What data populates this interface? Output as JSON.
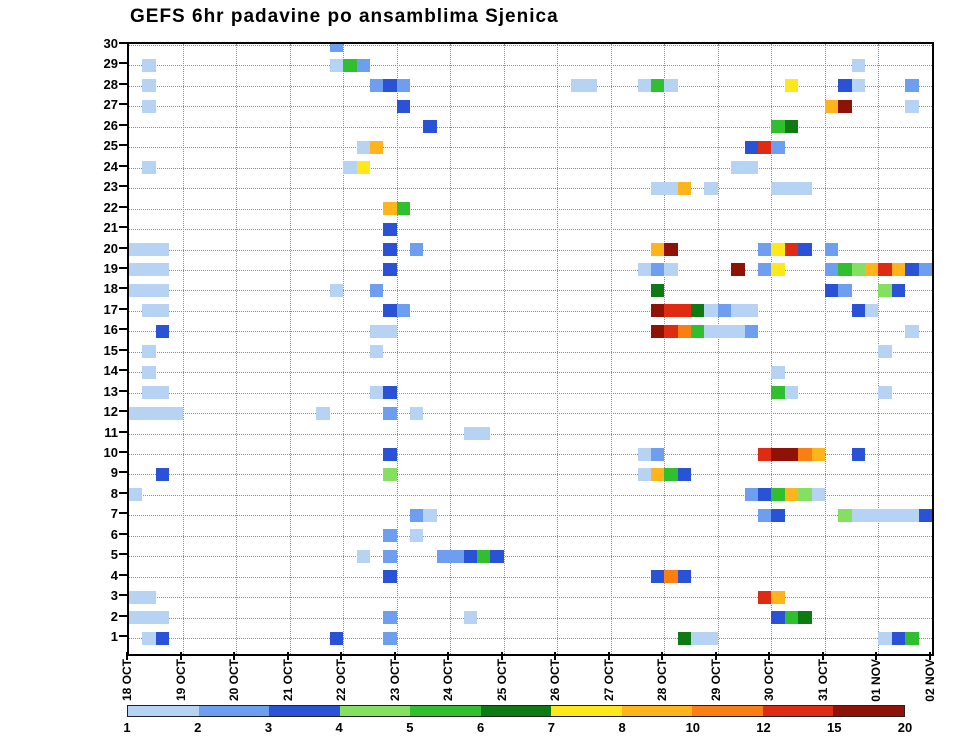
{
  "chart_data": {
    "type": "heatmap",
    "title": "GEFS 6hr padavine po ansamblima Sjenica",
    "xlabel": "",
    "ylabel": "",
    "grid": "dotted",
    "background": "#ffffff",
    "legend_position": "bottom",
    "x_tick_labels": [
      "18 OCT",
      "19 OCT",
      "20 OCT",
      "21 OCT",
      "22 OCT",
      "23 OCT",
      "24 OCT",
      "25 OCT",
      "26 OCT",
      "27 OCT",
      "28 OCT",
      "29 OCT",
      "30 OCT",
      "31 OCT",
      "01 NOV",
      "02 NOV"
    ],
    "steps_per_day": 4,
    "total_steps": 60,
    "y_tick_labels": [
      "30",
      "29",
      "28",
      "27",
      "26",
      "25",
      "24",
      "23",
      "22",
      "21",
      "20",
      "19",
      "18",
      "17",
      "16",
      "15",
      "14",
      "13",
      "12",
      "11",
      "10",
      "9",
      "8",
      "7",
      "6",
      "5",
      "4",
      "3",
      "2",
      "1"
    ],
    "colorbar": {
      "labels": [
        "1",
        "2",
        "3",
        "4",
        "5",
        "6",
        "7",
        "8",
        "10",
        "12",
        "15",
        "20"
      ],
      "thresholds": [
        1,
        2,
        3,
        4,
        5,
        6,
        7,
        8,
        10,
        12,
        15
      ],
      "colors": [
        "#b7d3f4",
        "#6e9ef0",
        "#2a52d6",
        "#85e061",
        "#2fbf2f",
        "#0d7a14",
        "#ffe81a",
        "#ffb41c",
        "#f97f12",
        "#de2b12",
        "#8e1306"
      ]
    },
    "cells": [
      [
        30,
        15,
        2
      ],
      [
        29,
        1,
        1
      ],
      [
        29,
        15,
        1
      ],
      [
        29,
        16,
        5
      ],
      [
        29,
        17,
        2
      ],
      [
        29,
        54,
        1
      ],
      [
        28,
        1,
        1
      ],
      [
        28,
        18,
        2
      ],
      [
        28,
        19,
        3
      ],
      [
        28,
        20,
        2
      ],
      [
        28,
        33,
        1
      ],
      [
        28,
        34,
        1
      ],
      [
        28,
        38,
        1
      ],
      [
        28,
        39,
        5
      ],
      [
        28,
        40,
        1
      ],
      [
        28,
        49,
        7
      ],
      [
        28,
        53,
        3
      ],
      [
        28,
        54,
        1
      ],
      [
        28,
        58,
        2
      ],
      [
        27,
        1,
        1
      ],
      [
        27,
        20,
        3
      ],
      [
        27,
        52,
        8
      ],
      [
        27,
        53,
        15
      ],
      [
        27,
        58,
        1
      ],
      [
        26,
        22,
        3
      ],
      [
        26,
        48,
        5
      ],
      [
        26,
        49,
        6
      ],
      [
        25,
        17,
        1
      ],
      [
        25,
        18,
        8
      ],
      [
        25,
        46,
        3
      ],
      [
        25,
        47,
        12
      ],
      [
        25,
        48,
        2
      ],
      [
        24,
        1,
        1
      ],
      [
        24,
        16,
        1
      ],
      [
        24,
        17,
        7
      ],
      [
        24,
        45,
        1
      ],
      [
        24,
        46,
        1
      ],
      [
        23,
        39,
        1
      ],
      [
        23,
        40,
        1
      ],
      [
        23,
        41,
        8
      ],
      [
        23,
        43,
        1
      ],
      [
        23,
        48,
        1
      ],
      [
        23,
        49,
        1
      ],
      [
        23,
        50,
        1
      ],
      [
        22,
        19,
        8
      ],
      [
        22,
        20,
        5
      ],
      [
        21,
        19,
        3
      ],
      [
        20,
        0,
        1
      ],
      [
        20,
        1,
        1
      ],
      [
        20,
        2,
        1
      ],
      [
        20,
        19,
        3
      ],
      [
        20,
        21,
        2
      ],
      [
        20,
        39,
        8
      ],
      [
        20,
        40,
        15
      ],
      [
        20,
        47,
        2
      ],
      [
        20,
        48,
        7
      ],
      [
        20,
        49,
        12
      ],
      [
        20,
        50,
        3
      ],
      [
        20,
        52,
        2
      ],
      [
        19,
        0,
        1
      ],
      [
        19,
        1,
        1
      ],
      [
        19,
        2,
        1
      ],
      [
        19,
        19,
        3
      ],
      [
        19,
        38,
        1
      ],
      [
        19,
        39,
        2
      ],
      [
        19,
        40,
        1
      ],
      [
        19,
        45,
        15
      ],
      [
        19,
        47,
        2
      ],
      [
        19,
        48,
        7
      ],
      [
        19,
        52,
        2
      ],
      [
        19,
        53,
        5
      ],
      [
        19,
        54,
        4
      ],
      [
        19,
        55,
        8
      ],
      [
        19,
        56,
        12
      ],
      [
        19,
        57,
        8
      ],
      [
        19,
        58,
        3
      ],
      [
        19,
        59,
        2
      ],
      [
        18,
        0,
        1
      ],
      [
        18,
        1,
        1
      ],
      [
        18,
        2,
        1
      ],
      [
        18,
        15,
        1
      ],
      [
        18,
        18,
        2
      ],
      [
        18,
        39,
        6
      ],
      [
        18,
        52,
        3
      ],
      [
        18,
        53,
        2
      ],
      [
        18,
        56,
        4
      ],
      [
        18,
        57,
        3
      ],
      [
        17,
        1,
        1
      ],
      [
        17,
        2,
        1
      ],
      [
        17,
        19,
        3
      ],
      [
        17,
        20,
        2
      ],
      [
        17,
        39,
        15
      ],
      [
        17,
        40,
        12
      ],
      [
        17,
        41,
        12
      ],
      [
        17,
        42,
        6
      ],
      [
        17,
        43,
        1
      ],
      [
        17,
        44,
        2
      ],
      [
        17,
        45,
        1
      ],
      [
        17,
        46,
        1
      ],
      [
        17,
        54,
        3
      ],
      [
        17,
        55,
        1
      ],
      [
        16,
        2,
        3
      ],
      [
        16,
        18,
        1
      ],
      [
        16,
        19,
        1
      ],
      [
        16,
        39,
        15
      ],
      [
        16,
        40,
        12
      ],
      [
        16,
        41,
        10
      ],
      [
        16,
        42,
        5
      ],
      [
        16,
        43,
        1
      ],
      [
        16,
        44,
        1
      ],
      [
        16,
        45,
        1
      ],
      [
        16,
        46,
        2
      ],
      [
        16,
        58,
        1
      ],
      [
        15,
        1,
        1
      ],
      [
        15,
        18,
        1
      ],
      [
        15,
        56,
        1
      ],
      [
        14,
        1,
        1
      ],
      [
        14,
        48,
        1
      ],
      [
        13,
        1,
        1
      ],
      [
        13,
        2,
        1
      ],
      [
        13,
        18,
        1
      ],
      [
        13,
        19,
        3
      ],
      [
        13,
        48,
        5
      ],
      [
        13,
        49,
        1
      ],
      [
        13,
        56,
        1
      ],
      [
        12,
        0,
        1
      ],
      [
        12,
        1,
        1
      ],
      [
        12,
        2,
        1
      ],
      [
        12,
        3,
        1
      ],
      [
        12,
        14,
        1
      ],
      [
        12,
        19,
        2
      ],
      [
        12,
        21,
        1
      ],
      [
        11,
        25,
        1
      ],
      [
        11,
        26,
        1
      ],
      [
        10,
        19,
        3
      ],
      [
        10,
        38,
        1
      ],
      [
        10,
        39,
        2
      ],
      [
        10,
        47,
        12
      ],
      [
        10,
        48,
        15
      ],
      [
        10,
        49,
        15
      ],
      [
        10,
        50,
        10
      ],
      [
        10,
        51,
        8
      ],
      [
        10,
        54,
        3
      ],
      [
        9,
        2,
        3
      ],
      [
        9,
        19,
        4
      ],
      [
        9,
        38,
        1
      ],
      [
        9,
        39,
        8
      ],
      [
        9,
        40,
        5
      ],
      [
        9,
        41,
        3
      ],
      [
        8,
        0,
        1
      ],
      [
        8,
        46,
        2
      ],
      [
        8,
        47,
        3
      ],
      [
        8,
        48,
        5
      ],
      [
        8,
        49,
        8
      ],
      [
        8,
        50,
        4
      ],
      [
        8,
        51,
        1
      ],
      [
        7,
        21,
        2
      ],
      [
        7,
        22,
        1
      ],
      [
        7,
        47,
        2
      ],
      [
        7,
        48,
        3
      ],
      [
        7,
        53,
        4
      ],
      [
        7,
        54,
        1
      ],
      [
        7,
        55,
        1
      ],
      [
        7,
        56,
        1
      ],
      [
        7,
        57,
        1
      ],
      [
        7,
        58,
        1
      ],
      [
        7,
        59,
        3
      ],
      [
        6,
        19,
        2
      ],
      [
        6,
        21,
        1
      ],
      [
        5,
        17,
        1
      ],
      [
        5,
        19,
        2
      ],
      [
        5,
        23,
        2
      ],
      [
        5,
        24,
        2
      ],
      [
        5,
        25,
        3
      ],
      [
        5,
        26,
        5
      ],
      [
        5,
        27,
        3
      ],
      [
        4,
        19,
        3
      ],
      [
        4,
        39,
        3
      ],
      [
        4,
        40,
        10
      ],
      [
        4,
        41,
        3
      ],
      [
        3,
        0,
        1
      ],
      [
        3,
        1,
        1
      ],
      [
        3,
        47,
        12
      ],
      [
        3,
        48,
        8
      ],
      [
        2,
        0,
        1
      ],
      [
        2,
        1,
        1
      ],
      [
        2,
        2,
        1
      ],
      [
        2,
        19,
        2
      ],
      [
        2,
        25,
        1
      ],
      [
        2,
        48,
        3
      ],
      [
        2,
        49,
        5
      ],
      [
        2,
        50,
        6
      ],
      [
        1,
        1,
        1
      ],
      [
        1,
        2,
        3
      ],
      [
        1,
        15,
        3
      ],
      [
        1,
        19,
        2
      ],
      [
        1,
        41,
        6
      ],
      [
        1,
        42,
        1
      ],
      [
        1,
        43,
        1
      ],
      [
        1,
        56,
        1
      ],
      [
        1,
        57,
        3
      ],
      [
        1,
        58,
        5
      ]
    ]
  }
}
